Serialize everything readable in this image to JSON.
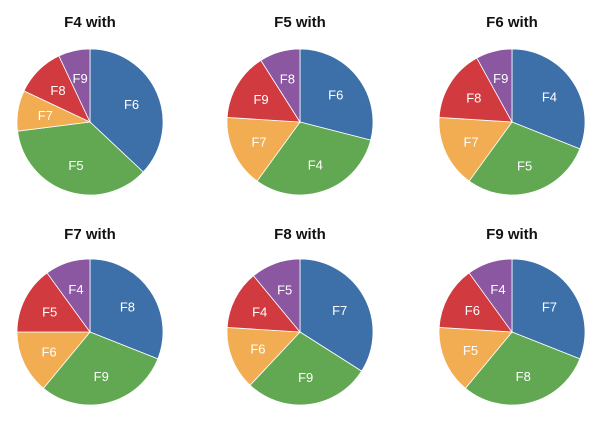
{
  "chart_data": [
    {
      "type": "pie",
      "title": "F4 with",
      "categories": [
        "F6",
        "F5",
        "F7",
        "F8",
        "F9"
      ],
      "values": [
        37,
        36,
        9,
        11,
        7
      ],
      "colors": [
        "#3d6fa8",
        "#62a852",
        "#f2ad52",
        "#d13a3e",
        "#8a57a0"
      ]
    },
    {
      "type": "pie",
      "title": "F5 with",
      "categories": [
        "F6",
        "F4",
        "F7",
        "F9",
        "F8"
      ],
      "values": [
        29,
        31,
        16,
        15,
        9
      ],
      "colors": [
        "#3d6fa8",
        "#62a852",
        "#f2ad52",
        "#d13a3e",
        "#8a57a0"
      ]
    },
    {
      "type": "pie",
      "title": "F6 with",
      "categories": [
        "F4",
        "F5",
        "F7",
        "F8",
        "F9"
      ],
      "values": [
        31,
        29,
        16,
        16,
        8
      ],
      "colors": [
        "#3d6fa8",
        "#62a852",
        "#f2ad52",
        "#d13a3e",
        "#8a57a0"
      ]
    },
    {
      "type": "pie",
      "title": "F7 with",
      "categories": [
        "F8",
        "F9",
        "F6",
        "F5",
        "F4"
      ],
      "values": [
        31,
        30,
        14,
        15,
        10
      ],
      "colors": [
        "#3d6fa8",
        "#62a852",
        "#f2ad52",
        "#d13a3e",
        "#8a57a0"
      ]
    },
    {
      "type": "pie",
      "title": "F8 with",
      "categories": [
        "F7",
        "F9",
        "F6",
        "F4",
        "F5"
      ],
      "values": [
        34,
        28,
        14,
        13,
        11
      ],
      "colors": [
        "#3d6fa8",
        "#62a852",
        "#f2ad52",
        "#d13a3e",
        "#8a57a0"
      ]
    },
    {
      "type": "pie",
      "title": "F9 with",
      "categories": [
        "F7",
        "F8",
        "F5",
        "F6",
        "F4"
      ],
      "values": [
        31,
        30,
        15,
        14,
        10
      ],
      "colors": [
        "#3d6fa8",
        "#62a852",
        "#f2ad52",
        "#d13a3e",
        "#8a57a0"
      ]
    }
  ]
}
